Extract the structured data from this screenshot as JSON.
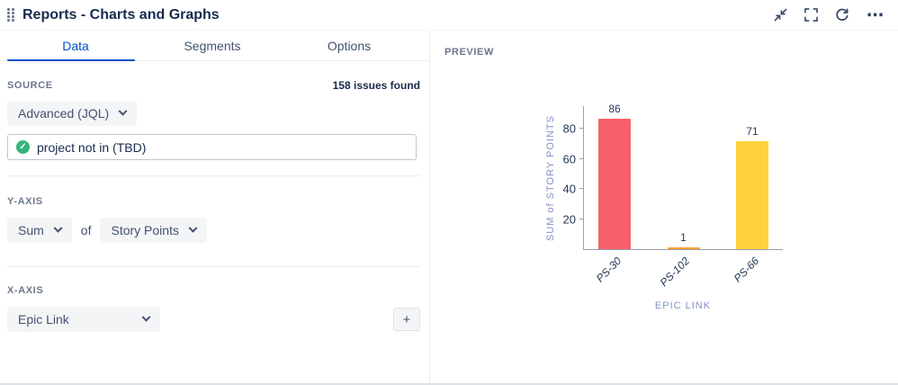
{
  "header": {
    "title": "Reports - Charts and Graphs"
  },
  "tabs": [
    {
      "label": "Data",
      "active": true
    },
    {
      "label": "Segments",
      "active": false
    },
    {
      "label": "Options",
      "active": false
    }
  ],
  "source": {
    "label": "SOURCE",
    "issues_found": "158 issues found",
    "mode_dropdown": "Advanced (JQL)",
    "jql_value": "project not in (TBD)"
  },
  "y_axis": {
    "label": "Y-AXIS",
    "aggregation": "Sum",
    "connector": "of",
    "field": "Story Points"
  },
  "x_axis": {
    "label": "X-AXIS",
    "field": "Epic Link",
    "add_label": "+"
  },
  "preview": {
    "label": "PREVIEW"
  },
  "chart_data": {
    "type": "bar",
    "categories": [
      "PS-30",
      "PS-102",
      "PS-66"
    ],
    "values": [
      86,
      1,
      71
    ],
    "title": "",
    "xlabel": "EPIC LINK",
    "ylabel": "SUM of STORY POINTS",
    "yticks": [
      20,
      40,
      60,
      80
    ],
    "ylim": [
      0,
      95
    ],
    "bar_colors": [
      "#f7606a",
      "#ff9d2e",
      "#ffd33d"
    ],
    "grid": false,
    "legend": false
  },
  "icons": {
    "more": "⋯",
    "check-circle": "✓",
    "drag-handle": "dots-grid",
    "exit-fullscreen": "arrows-inward",
    "fullscreen": "corner-brackets",
    "refresh": "circular-arrows",
    "chevron-down": "css-chevron"
  },
  "colors": {
    "accent": "#0052CC",
    "title": "#172B4D",
    "section_label": "#6B778C",
    "success_check": "#36B37E",
    "axis_text": "#8492C8",
    "axis_line": "#97A0AF"
  }
}
